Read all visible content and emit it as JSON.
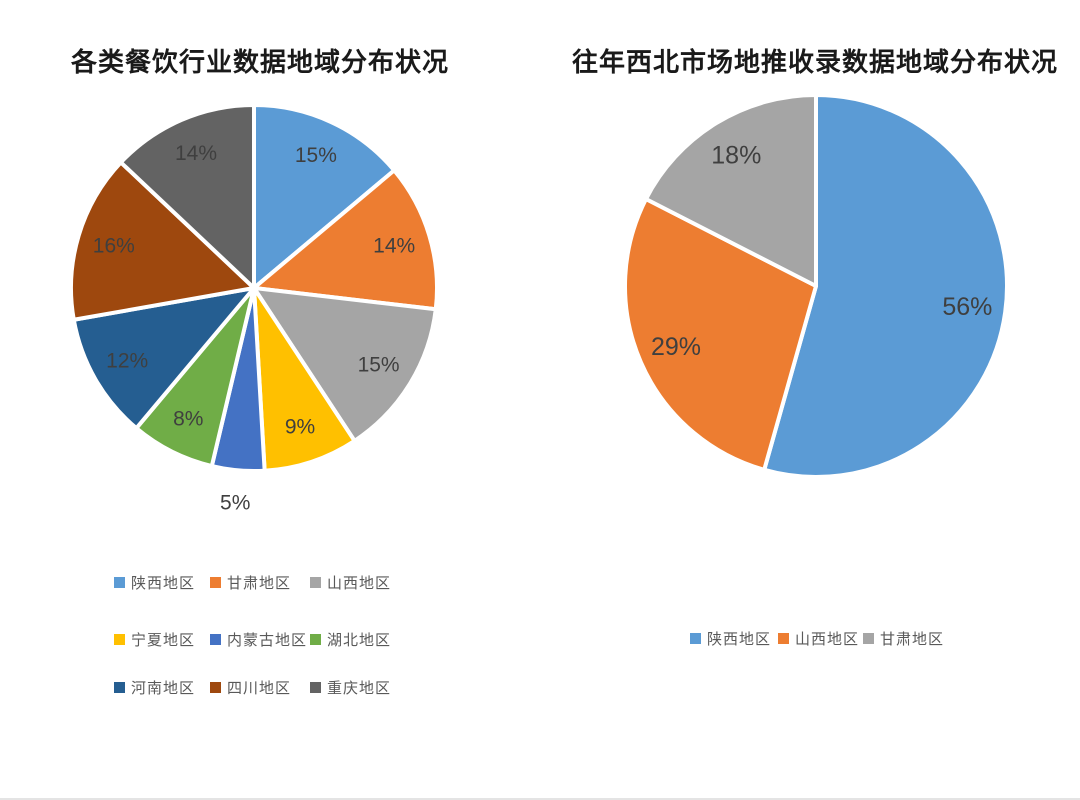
{
  "page": {
    "background": "#ffffff"
  },
  "chart_data": [
    {
      "type": "pie",
      "title": "各类餐饮行业数据地域分布状况",
      "categories": [
        "陕西地区",
        "甘肃地区",
        "山西地区",
        "宁夏地区",
        "内蒙古地区",
        "湖北地区",
        "河南地区",
        "四川地区",
        "重庆地区"
      ],
      "values": [
        15,
        14,
        15,
        9,
        5,
        8,
        12,
        16,
        14
      ],
      "data_labels": [
        "15%",
        "14%",
        "15%",
        "9%",
        "5%",
        "8%",
        "12%",
        "16%",
        "14%"
      ],
      "colors": [
        "#5B9BD5",
        "#ED7D31",
        "#A5A5A5",
        "#FFC000",
        "#4472C4",
        "#70AD47",
        "#255E91",
        "#9E480E",
        "#636363"
      ],
      "label_color": "#3F3F3F",
      "legend_text_color": "#595959",
      "legend_position": "bottom-left, 3 rows x 3 columns",
      "start_angle_deg": 0,
      "direction": "clockwise",
      "slice_separator_color": "#FFFFFF"
    },
    {
      "type": "pie",
      "title": "往年西北市场地推收录数据地域分布状况",
      "categories": [
        "陕西地区",
        "山西地区",
        "甘肃地区"
      ],
      "values": [
        56,
        29,
        18
      ],
      "data_labels": [
        "56%",
        "29%",
        "18%"
      ],
      "colors": [
        "#5B9BD5",
        "#ED7D31",
        "#A5A5A5"
      ],
      "label_color": "#3F3F3F",
      "legend_text_color": "#595959",
      "legend_position": "bottom-center, 1 row",
      "start_angle_deg": 0,
      "direction": "clockwise",
      "slice_separator_color": "#FFFFFF"
    }
  ]
}
